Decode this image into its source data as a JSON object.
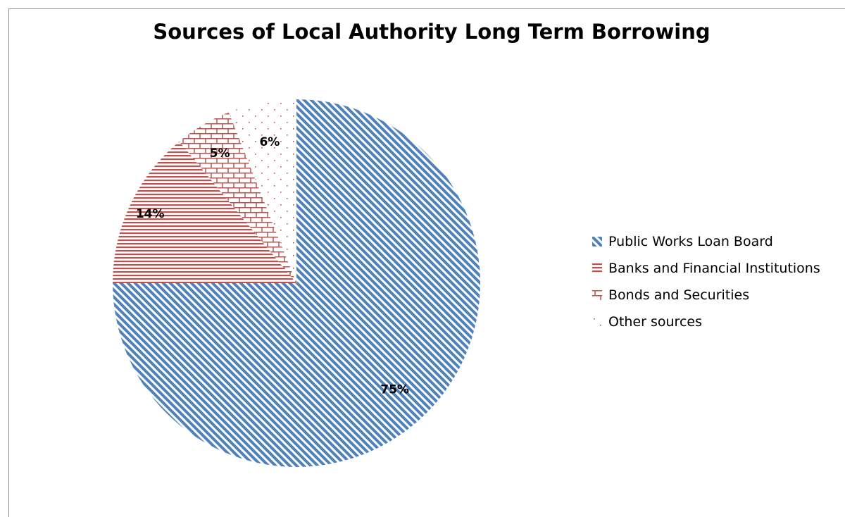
{
  "chart_data": {
    "type": "pie",
    "title": "Sources of Local Authority Long Term Borrowing",
    "categories": [
      "Public Works Loan Board",
      "Banks and Financial Institutions",
      "Bonds and Securities",
      "Other sources"
    ],
    "values": [
      75,
      14,
      5,
      6
    ],
    "labels": [
      "75%",
      "14%",
      "5%",
      "6%"
    ],
    "colors": [
      "#4f81bd",
      "#c0504d",
      "#c0504d",
      "#c0504d"
    ],
    "patterns": [
      "diagonal-stripes",
      "horizontal-lines",
      "brick",
      "dots"
    ],
    "legend_position": "right",
    "start_angle": "12 o'clock",
    "direction": "clockwise"
  }
}
